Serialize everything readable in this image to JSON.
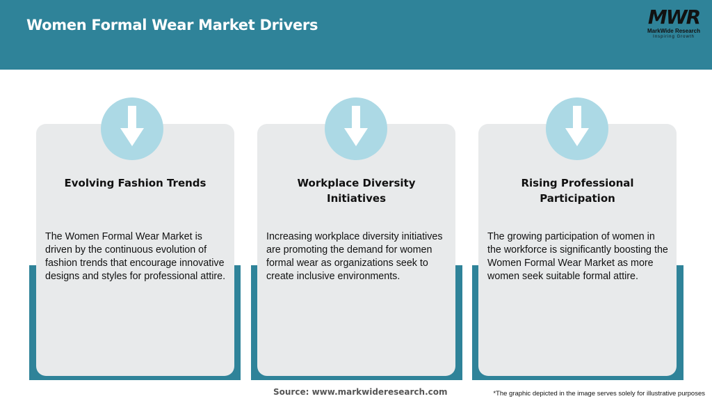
{
  "header": {
    "title": "Women Formal Wear Market Drivers",
    "bg_color": "#2f8399"
  },
  "logo": {
    "mark": "MWR",
    "name": "MarkWide Research",
    "tagline": "Inspiring Growth"
  },
  "cards": [
    {
      "icon": "arrow-down-icon",
      "title": "Evolving Fashion Trends",
      "text": "The Women Formal Wear Market is driven by the continuous evolution of fashion trends that encourage innovative designs and styles for professional attire."
    },
    {
      "icon": "arrow-down-icon",
      "title": "Workplace Diversity Initiatives",
      "text": "Increasing workplace diversity initiatives are promoting the demand for women formal wear as organizations seek to create inclusive environments."
    },
    {
      "icon": "arrow-down-icon",
      "title": "Rising Professional Participation",
      "text": "The growing participation of women in the workforce is significantly boosting the Women Formal Wear Market as more women seek suitable formal attire."
    }
  ],
  "footer": {
    "source": "Source: www.markwideresearch.com",
    "note": "*The graphic depicted in the image serves solely for illustrative purposes"
  }
}
